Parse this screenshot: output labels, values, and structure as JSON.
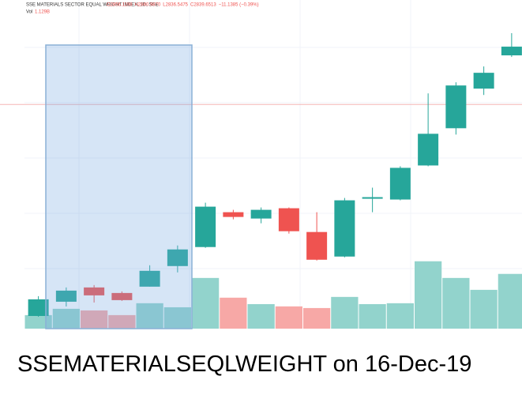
{
  "chart_data": {
    "type": "candlestick",
    "title": "SSE MATERIALS SECTOR EQUAL WEIGHT INDEX, 1D, SSE",
    "ohlc_labels": [
      "O2856.1198",
      "H2860.9870",
      "L2836.5475",
      "C2839.6513",
      "−11.1385 (−0.39%)"
    ],
    "volume_title": "Vol",
    "volume_label": "1.129B",
    "caption": "SSEMATERIALSEQLWEIGHT on 16-Dec-19",
    "open": [
      2798,
      2834,
      2870,
      2856,
      2872,
      2924,
      2972,
      3060,
      3044,
      3070,
      3010,
      2948,
      3094,
      3092,
      3178,
      3272,
      3372,
      3456
    ],
    "high": [
      2848,
      2870,
      2876,
      2860,
      2926,
      2976,
      3084,
      3066,
      3072,
      3072,
      3060,
      3096,
      3122,
      3176,
      3360,
      3388,
      3428,
      3512
    ],
    "low": [
      2796,
      2822,
      2832,
      2836,
      2872,
      2908,
      2970,
      3042,
      3032,
      3006,
      2938,
      2946,
      3060,
      3090,
      3176,
      3256,
      3356,
      3452
    ],
    "close": [
      2840,
      2862,
      2850,
      2838,
      2912,
      2966,
      3074,
      3048,
      3066,
      3012,
      2940,
      3090,
      3098,
      3172,
      3258,
      3380,
      3412,
      3478
    ],
    "volume": [
      1.07,
      1.57,
      1.44,
      1.07,
      2.01,
      1.69,
      4.01,
      2.45,
      1.94,
      1.76,
      1.63,
      2.51,
      1.94,
      2.01,
      5.33,
      4.01,
      3.07,
      4.33
    ],
    "ylim": [
      2766,
      3516
    ],
    "volume_lim": [
      0,
      23.5
    ],
    "price_line": 3332,
    "up_color": "#26a69a",
    "down_color": "#ef5350",
    "volume_up_color": "#92d3cc",
    "volume_down_color": "#f7a8a6",
    "price_line_color": "#f5b5b5"
  }
}
